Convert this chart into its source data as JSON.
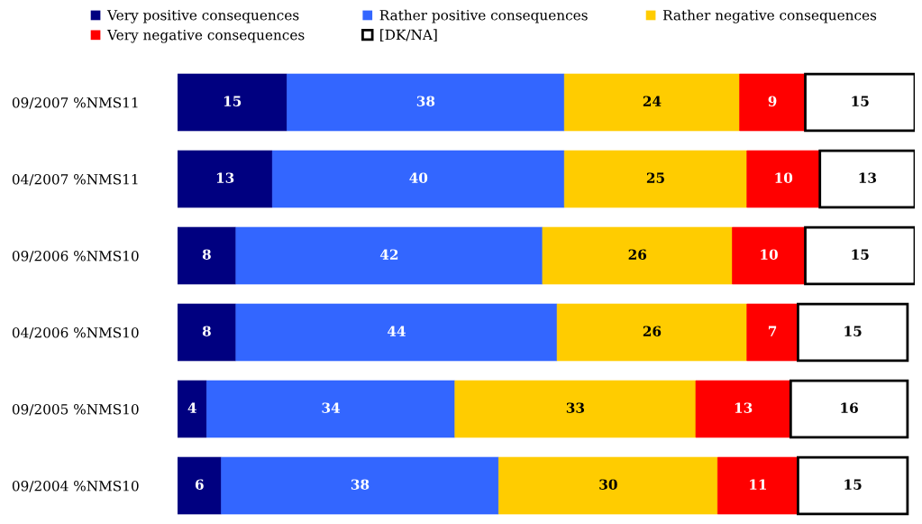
{
  "chart_data": {
    "type": "bar",
    "orientation": "horizontal",
    "stacked": true,
    "data_labels": true,
    "legend": "top",
    "grid": false,
    "tick_labels": "y",
    "categories": [
      "09/2007 %NMS11",
      "04/2007 %NMS11",
      "09/2006 %NMS10",
      "04/2006 %NMS10",
      "09/2005 %NMS10",
      "09/2004 %NMS10"
    ],
    "series": [
      {
        "name": "Very positive consequences",
        "color": "#000080",
        "values": [
          15,
          13,
          8,
          8,
          4,
          6
        ]
      },
      {
        "name": "Rather positive consequences",
        "color": "#3366ff",
        "values": [
          38,
          40,
          42,
          44,
          34,
          38
        ]
      },
      {
        "name": "Rather negative consequences",
        "color": "#ffcc00",
        "values": [
          24,
          25,
          26,
          26,
          33,
          30
        ]
      },
      {
        "name": "Very negative consequences",
        "color": "#ff0000",
        "values": [
          9,
          10,
          10,
          7,
          13,
          11
        ]
      },
      {
        "name": "[DK/NA]",
        "color": "#ffffff",
        "values": [
          15,
          13,
          15,
          15,
          16,
          15
        ]
      }
    ]
  }
}
